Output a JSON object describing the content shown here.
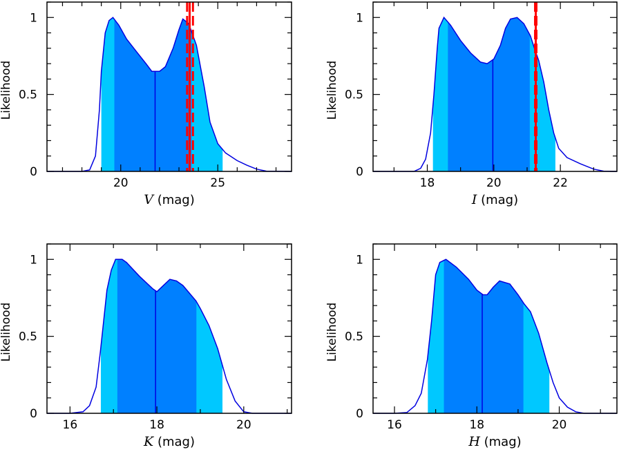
{
  "colors": {
    "outer_band": "#00c8ff",
    "inner_band": "#0080ff",
    "curve": "#0000e0",
    "median": "#0000e0",
    "reference": "#ff0000",
    "frame": "#000000"
  },
  "chart_data": [
    {
      "type": "area",
      "xvar": "V",
      "xunit": "(mag)",
      "ylabel": "Likelihood",
      "xlim": [
        16.2,
        28.8
      ],
      "ylim": [
        0,
        1.1
      ],
      "xticks": [
        20,
        25
      ],
      "xtick_labels": [
        "20",
        "25"
      ],
      "xminor_step": 1,
      "yticks": [
        0,
        0.5,
        1
      ],
      "ytick_labels": [
        "0",
        "0.5",
        "1"
      ],
      "yminor_step": 0.1,
      "x": [
        16.2,
        18.0,
        18.4,
        18.7,
        18.9,
        19.0,
        19.2,
        19.4,
        19.6,
        19.9,
        20.3,
        20.8,
        21.3,
        21.6,
        22.0,
        22.3,
        22.7,
        23.0,
        23.2,
        23.5,
        23.9,
        24.3,
        24.6,
        25.0,
        25.4,
        26.0,
        26.5,
        27.0,
        27.5,
        28.8
      ],
      "y": [
        0,
        0,
        0.01,
        0.1,
        0.4,
        0.65,
        0.9,
        0.98,
        1.0,
        0.95,
        0.86,
        0.78,
        0.7,
        0.65,
        0.65,
        0.68,
        0.8,
        0.92,
        0.99,
        0.96,
        0.82,
        0.55,
        0.32,
        0.18,
        0.12,
        0.07,
        0.04,
        0.015,
        0.002,
        0
      ],
      "outer_band": [
        19.0,
        25.25
      ],
      "inner_band": [
        19.67,
        23.65
      ],
      "median": 21.77,
      "reference": {
        "value": 23.55,
        "lower": 23.42,
        "upper": 23.72
      }
    },
    {
      "type": "area",
      "xvar": "I",
      "xunit": "(mag)",
      "ylabel": "Likelihood",
      "xlim": [
        16.37,
        23.7
      ],
      "ylim": [
        0,
        1.1
      ],
      "xticks": [
        18,
        20,
        22
      ],
      "xtick_labels": [
        "18",
        "20",
        "22"
      ],
      "xminor_step": 1,
      "yticks": [
        0,
        0.5,
        1
      ],
      "ytick_labels": [
        "0",
        "0.5",
        "1"
      ],
      "yminor_step": 0.1,
      "x": [
        16.37,
        17.6,
        17.8,
        17.95,
        18.1,
        18.2,
        18.3,
        18.35,
        18.5,
        18.7,
        19.0,
        19.3,
        19.6,
        19.8,
        20.0,
        20.2,
        20.35,
        20.5,
        20.7,
        20.9,
        21.1,
        21.25,
        21.35,
        21.5,
        21.65,
        21.8,
        21.95,
        22.2,
        22.6,
        23.0,
        23.3,
        23.7
      ],
      "y": [
        0,
        0,
        0.02,
        0.08,
        0.25,
        0.5,
        0.8,
        0.93,
        1.0,
        0.95,
        0.85,
        0.77,
        0.71,
        0.7,
        0.73,
        0.82,
        0.93,
        0.99,
        1.0,
        0.96,
        0.88,
        0.78,
        0.72,
        0.58,
        0.4,
        0.25,
        0.15,
        0.09,
        0.05,
        0.015,
        0.002,
        0
      ],
      "outer_band": [
        18.17,
        21.85
      ],
      "inner_band": [
        18.62,
        21.08
      ],
      "median": 19.97,
      "reference": {
        "value": 21.26,
        "lower": 21.24,
        "upper": 21.28
      }
    },
    {
      "type": "area",
      "xvar": "K",
      "xunit": "(mag)",
      "ylabel": "Likelihood",
      "xlim": [
        15.47,
        21.1
      ],
      "ylim": [
        0,
        1.1
      ],
      "xticks": [
        16,
        18,
        20
      ],
      "xtick_labels": [
        "16",
        "18",
        "20"
      ],
      "xminor_step": 1,
      "yticks": [
        0,
        0.5,
        1
      ],
      "ytick_labels": [
        "0",
        "0.5",
        "1"
      ],
      "yminor_step": 0.1,
      "x": [
        15.47,
        16.0,
        16.3,
        16.45,
        16.6,
        16.7,
        16.85,
        16.95,
        17.05,
        17.2,
        17.3,
        17.6,
        17.9,
        18.0,
        18.15,
        18.3,
        18.45,
        18.6,
        18.9,
        19.0,
        19.2,
        19.4,
        19.6,
        19.8,
        20.0,
        20.2,
        21.1
      ],
      "y": [
        0,
        0,
        0.01,
        0.05,
        0.17,
        0.4,
        0.8,
        0.93,
        1.0,
        1.0,
        0.98,
        0.89,
        0.81,
        0.79,
        0.83,
        0.87,
        0.86,
        0.83,
        0.73,
        0.68,
        0.57,
        0.42,
        0.22,
        0.08,
        0.01,
        0,
        0
      ],
      "outer_band": [
        16.71,
        19.51
      ],
      "inner_band": [
        17.09,
        18.91
      ],
      "median": 17.97
    },
    {
      "type": "area",
      "xvar": "H",
      "xunit": "(mag)",
      "ylabel": "Likelihood",
      "xlim": [
        15.48,
        21.4
      ],
      "ylim": [
        0,
        1.1
      ],
      "xticks": [
        16,
        18,
        20
      ],
      "xtick_labels": [
        "16",
        "18",
        "20"
      ],
      "xminor_step": 1,
      "yticks": [
        0,
        0.5,
        1
      ],
      "ytick_labels": [
        "0",
        "0.5",
        "1"
      ],
      "yminor_step": 0.1,
      "x": [
        15.48,
        16.0,
        16.3,
        16.5,
        16.65,
        16.8,
        16.9,
        17.0,
        17.1,
        17.25,
        17.5,
        17.8,
        18.0,
        18.15,
        18.25,
        18.4,
        18.55,
        18.8,
        19.0,
        19.15,
        19.3,
        19.5,
        19.7,
        19.85,
        20.0,
        20.2,
        20.4,
        20.6,
        21.4
      ],
      "y": [
        0,
        0,
        0.005,
        0.05,
        0.13,
        0.35,
        0.6,
        0.9,
        0.98,
        1.0,
        0.95,
        0.87,
        0.8,
        0.77,
        0.77,
        0.82,
        0.86,
        0.84,
        0.77,
        0.71,
        0.66,
        0.52,
        0.33,
        0.2,
        0.1,
        0.04,
        0.01,
        0,
        0
      ],
      "outer_band": [
        16.81,
        19.76
      ],
      "inner_band": [
        17.2,
        19.13
      ],
      "median": 18.13
    }
  ]
}
